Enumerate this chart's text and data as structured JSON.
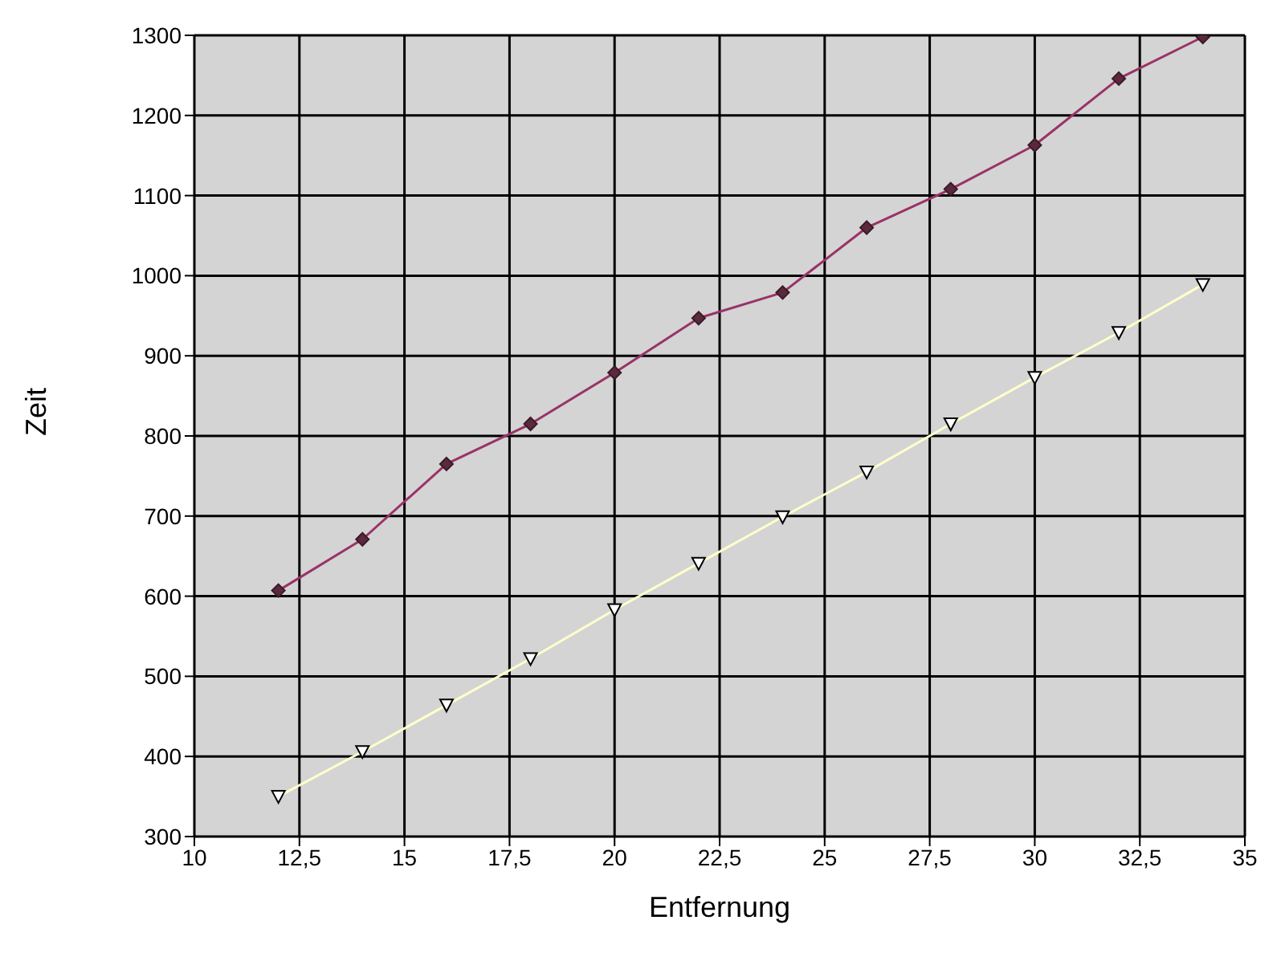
{
  "chart_data": {
    "type": "line",
    "xlabel": "Entfernung",
    "ylabel": "Zeit",
    "x": [
      12,
      14,
      16,
      18,
      20,
      22,
      24,
      26,
      28,
      30,
      32,
      34
    ],
    "series": [
      {
        "color": "#993366",
        "marker": "diamond",
        "values": [
          607,
          671,
          765,
          815,
          879,
          947,
          979,
          1060,
          1108,
          1163,
          1246,
          1298
        ]
      },
      {
        "color": "#ffffcc",
        "marker": "triangle",
        "values": [
          350,
          406,
          464,
          522,
          583,
          641,
          699,
          755,
          815,
          873,
          929,
          989
        ]
      }
    ],
    "xlim": [
      10,
      35
    ],
    "xticks": [
      10,
      {
        "value": 12.5,
        "label": "12,5"
      },
      15,
      {
        "value": 17.5,
        "label": "17,5"
      },
      20,
      {
        "value": 22.5,
        "label": "22,5"
      },
      25,
      {
        "value": 27.5,
        "label": "27,5"
      },
      30,
      {
        "value": 32.5,
        "label": "32,5"
      },
      35
    ],
    "ylim": [
      300,
      1300
    ],
    "yticks": [
      300,
      400,
      500,
      600,
      700,
      800,
      900,
      1000,
      1100,
      1200,
      1300
    ],
    "grid": true
  }
}
